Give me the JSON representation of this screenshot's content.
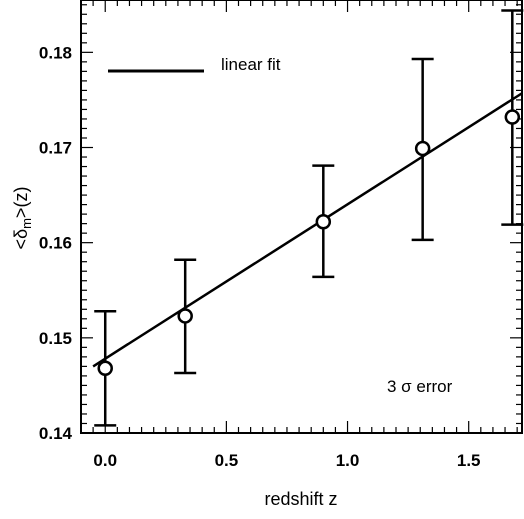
{
  "chart_data": {
    "type": "scatter",
    "xlabel": "redshift z",
    "ylabel_main": "<δ",
    "ylabel_sub": "m",
    "ylabel_tail": ">(z)",
    "xlim": [
      -0.1,
      1.72
    ],
    "ylim": [
      0.14,
      0.1855
    ],
    "x_ticks": [
      0.0,
      0.5,
      1.0,
      1.5
    ],
    "x_tick_labels": [
      "0.0",
      "0.5",
      "1.0",
      "1.5"
    ],
    "y_ticks": [
      0.14,
      0.15,
      0.16,
      0.17,
      0.18
    ],
    "y_tick_labels": [
      "0.14",
      "0.15",
      "0.16",
      "0.17",
      "0.18"
    ],
    "series": [
      {
        "x": [
          0.0,
          0.33,
          0.9,
          1.31,
          1.68
        ],
        "y": [
          0.1468,
          0.1523,
          0.1622,
          0.1699,
          0.1732
        ],
        "err_low": [
          0.1408,
          0.1463,
          0.1564,
          0.1603,
          0.1619
        ],
        "err_high": [
          0.1528,
          0.1582,
          0.1681,
          0.1793,
          0.1844
        ]
      }
    ],
    "fit": {
      "name": "linear fit",
      "x": [
        -0.05,
        1.72
      ],
      "y": [
        0.147,
        0.1757
      ]
    },
    "annotation": "3 σ error",
    "legend_position": "top-left",
    "grid": false
  }
}
